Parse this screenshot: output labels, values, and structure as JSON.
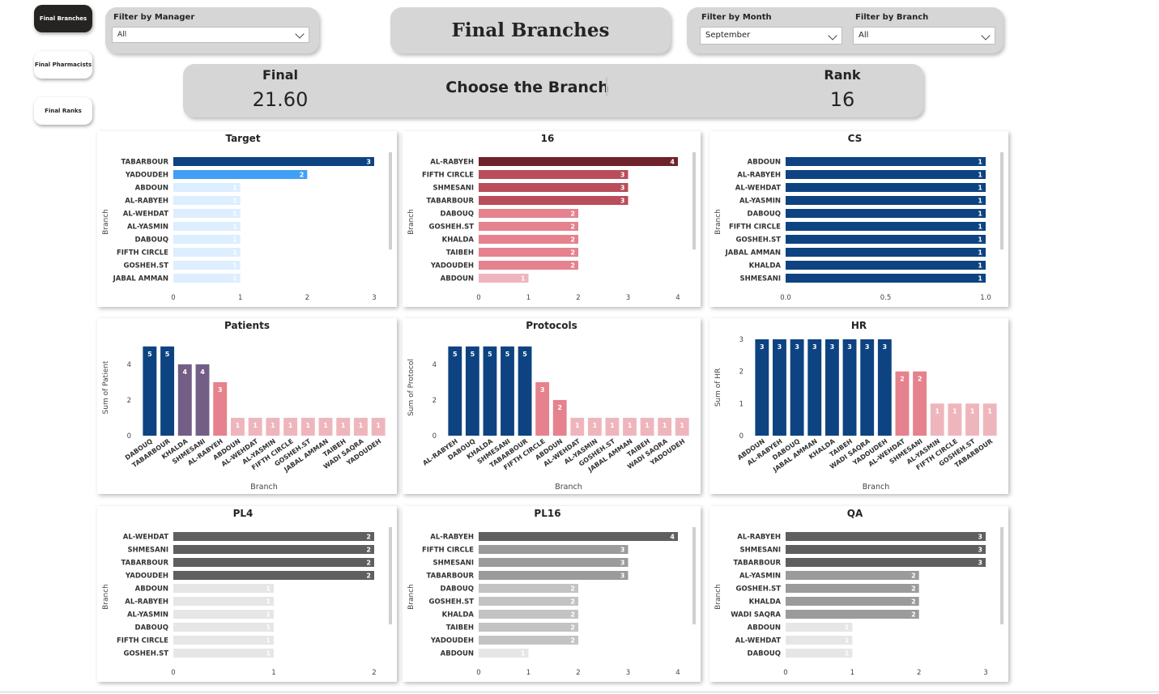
{
  "nav": {
    "branches": "Final Branches",
    "pharmacists": "Final Pharmacists",
    "ranks": "Final Ranks"
  },
  "filters": {
    "manager_label": "Filter by Manager",
    "manager_value": "All",
    "month_label": "Filter by Month",
    "month_value": "September",
    "branch_label": "Filter by Branch",
    "branch_value": "All"
  },
  "page_title": "Final Branches",
  "kpi": {
    "final_label": "Final",
    "final_value": "21.60",
    "choose_label": "Choose the Branch",
    "rank_label": "Rank",
    "rank_value": "16"
  },
  "colors": {
    "navy": "#0d4381",
    "blue": "#41a0f5",
    "paleblue": "#dceeff",
    "maroon": "#6e2229",
    "rose": "#b94d59",
    "pink": "#e5828d",
    "palepink": "#eeb6bc",
    "purple": "#735f85",
    "darkgray": "#5f5f5f",
    "midgray": "#9b9b9b",
    "lightgray": "#c3c3c3",
    "palegray": "#e6e6e6"
  },
  "chart_data": [
    {
      "id": "target",
      "type": "bar",
      "orientation": "horizontal",
      "title": "Target",
      "ylabel": "Branch",
      "categories": [
        "TABARBOUR",
        "YADOUDEH",
        "ABDOUN",
        "AL-RABYEH",
        "AL-WEHDAT",
        "AL-YASMIN",
        "DABOUQ",
        "FIFTH CIRCLE",
        "GOSHEH.ST",
        "JABAL AMMAN"
      ],
      "values": [
        3,
        2,
        1,
        1,
        1,
        1,
        1,
        1,
        1,
        1
      ],
      "ticks": [
        "0",
        "1",
        "2",
        "3"
      ],
      "xlim": [
        0,
        3
      ],
      "bar_colors": [
        "navy",
        "blue",
        "paleblue",
        "paleblue",
        "paleblue",
        "paleblue",
        "paleblue",
        "paleblue",
        "paleblue",
        "paleblue"
      ]
    },
    {
      "id": "c16",
      "type": "bar",
      "orientation": "horizontal",
      "title": "16",
      "ylabel": "Branch",
      "categories": [
        "AL-RABYEH",
        "FIFTH CIRCLE",
        "SHMESANI",
        "TABARBOUR",
        "DABOUQ",
        "GOSHEH.ST",
        "KHALDA",
        "TAIBEH",
        "YADOUDEH",
        "ABDOUN"
      ],
      "values": [
        4,
        3,
        3,
        3,
        2,
        2,
        2,
        2,
        2,
        1
      ],
      "ticks": [
        "0",
        "1",
        "2",
        "3",
        "4"
      ],
      "xlim": [
        0,
        4
      ],
      "bar_colors": [
        "maroon",
        "rose",
        "rose",
        "rose",
        "pink",
        "pink",
        "pink",
        "pink",
        "pink",
        "palepink"
      ]
    },
    {
      "id": "cs",
      "type": "bar",
      "orientation": "horizontal",
      "title": "CS",
      "ylabel": "Branch",
      "categories": [
        "ABDOUN",
        "AL-RABYEH",
        "AL-WEHDAT",
        "AL-YASMIN",
        "DABOUQ",
        "FIFTH CIRCLE",
        "GOSHEH.ST",
        "JABAL AMMAN",
        "KHALDA",
        "SHMESANI"
      ],
      "values": [
        1,
        1,
        1,
        1,
        1,
        1,
        1,
        1,
        1,
        1
      ],
      "ticks": [
        "0.0",
        "0.5",
        "1.0"
      ],
      "xlim": [
        0,
        1
      ],
      "bar_colors": [
        "navy",
        "navy",
        "navy",
        "navy",
        "navy",
        "navy",
        "navy",
        "navy",
        "navy",
        "navy"
      ]
    },
    {
      "id": "patients",
      "type": "bar",
      "orientation": "vertical",
      "title": "Patients",
      "xlabel": "Branch",
      "ylabel": "Sum of Patient",
      "categories": [
        "DABOUQ",
        "TABARBOUR",
        "KHALDA",
        "SHMESANI",
        "AL-RABYEH",
        "ABDOUN",
        "AL-WEHDAT",
        "AL-YASMIN",
        "FIFTH CIRCLE",
        "GOSHEH.ST",
        "JABAL AMMAN",
        "TAIBEH",
        "WADI SAQRA",
        "YADOUDEH"
      ],
      "values": [
        5,
        5,
        4,
        4,
        3,
        1,
        1,
        1,
        1,
        1,
        1,
        1,
        1,
        1
      ],
      "ticks": [
        "0",
        "2",
        "4"
      ],
      "ylim": [
        0,
        5.4
      ],
      "bar_colors": [
        "navy",
        "navy",
        "purple",
        "purple",
        "pink",
        "palepink",
        "palepink",
        "palepink",
        "palepink",
        "palepink",
        "palepink",
        "palepink",
        "palepink",
        "palepink"
      ]
    },
    {
      "id": "protocols",
      "type": "bar",
      "orientation": "vertical",
      "title": "Protocols",
      "xlabel": "Branch",
      "ylabel": "Sum of Protocol",
      "categories": [
        "AL-RABYEH",
        "DABOUQ",
        "KHALDA",
        "SHMESANI",
        "TABARBOUR",
        "FIFTH CIRCLE",
        "ABDOUN",
        "AL-WEHDAT",
        "AL-YASMIN",
        "GOSHEH.ST",
        "JABAL AMMAN",
        "TAIBEH",
        "WADI SAQRA",
        "YADOUDEH"
      ],
      "values": [
        5,
        5,
        5,
        5,
        5,
        3,
        2,
        1,
        1,
        1,
        1,
        1,
        1,
        1
      ],
      "ticks": [
        "0",
        "2",
        "4"
      ],
      "ylim": [
        0,
        5.4
      ],
      "bar_colors": [
        "navy",
        "navy",
        "navy",
        "navy",
        "navy",
        "pink",
        "pink",
        "palepink",
        "palepink",
        "palepink",
        "palepink",
        "palepink",
        "palepink",
        "palepink"
      ]
    },
    {
      "id": "hr",
      "type": "bar",
      "orientation": "vertical",
      "title": "HR",
      "xlabel": "Branch",
      "ylabel": "Sum of HR",
      "categories": [
        "ABDOUN",
        "AL-RABYEH",
        "DABOUQ",
        "JABAL AMMAN",
        "KHALDA",
        "TAIBEH",
        "WADI SAQRA",
        "YADOUDEH",
        "AL-WEHDAT",
        "SHMESANI",
        "AL-YASMIN",
        "FIFTH CIRCLE",
        "GOSHEH.ST",
        "TABARBOUR"
      ],
      "values": [
        3,
        3,
        3,
        3,
        3,
        3,
        3,
        3,
        2,
        2,
        1,
        1,
        1,
        1
      ],
      "ticks": [
        "0",
        "1",
        "2",
        "3"
      ],
      "ylim": [
        0,
        3
      ],
      "bar_colors": [
        "navy",
        "navy",
        "navy",
        "navy",
        "navy",
        "navy",
        "navy",
        "navy",
        "pink",
        "pink",
        "palepink",
        "palepink",
        "palepink",
        "palepink"
      ]
    },
    {
      "id": "pl4",
      "type": "bar",
      "orientation": "horizontal",
      "title": "PL4",
      "ylabel": "Branch",
      "categories": [
        "AL-WEHDAT",
        "SHMESANI",
        "TABARBOUR",
        "YADOUDEH",
        "ABDOUN",
        "AL-RABYEH",
        "AL-YASMIN",
        "DABOUQ",
        "FIFTH CIRCLE",
        "GOSHEH.ST"
      ],
      "values": [
        2,
        2,
        2,
        2,
        1,
        1,
        1,
        1,
        1,
        1
      ],
      "ticks": [
        "0",
        "1",
        "2"
      ],
      "xlim": [
        0,
        2
      ],
      "bar_colors": [
        "darkgray",
        "darkgray",
        "darkgray",
        "darkgray",
        "palegray",
        "palegray",
        "palegray",
        "palegray",
        "palegray",
        "palegray"
      ]
    },
    {
      "id": "pl16",
      "type": "bar",
      "orientation": "horizontal",
      "title": "PL16",
      "ylabel": "Branch",
      "categories": [
        "AL-RABYEH",
        "FIFTH CIRCLE",
        "SHMESANI",
        "TABARBOUR",
        "DABOUQ",
        "GOSHEH.ST",
        "KHALDA",
        "TAIBEH",
        "YADOUDEH",
        "ABDOUN"
      ],
      "values": [
        4,
        3,
        3,
        3,
        2,
        2,
        2,
        2,
        2,
        1
      ],
      "ticks": [
        "0",
        "1",
        "2",
        "3",
        "4"
      ],
      "xlim": [
        0,
        4
      ],
      "bar_colors": [
        "darkgray",
        "midgray",
        "midgray",
        "midgray",
        "lightgray",
        "lightgray",
        "lightgray",
        "lightgray",
        "lightgray",
        "palegray"
      ]
    },
    {
      "id": "qa",
      "type": "bar",
      "orientation": "horizontal",
      "title": "QA",
      "ylabel": "Branch",
      "categories": [
        "AL-RABYEH",
        "SHMESANI",
        "TABARBOUR",
        "AL-YASMIN",
        "GOSHEH.ST",
        "KHALDA",
        "WADI SAQRA",
        "ABDOUN",
        "AL-WEHDAT",
        "DABOUQ"
      ],
      "values": [
        3,
        3,
        3,
        2,
        2,
        2,
        2,
        1,
        1,
        1
      ],
      "ticks": [
        "0",
        "1",
        "2",
        "3"
      ],
      "xlim": [
        0,
        3
      ],
      "bar_colors": [
        "darkgray",
        "darkgray",
        "darkgray",
        "midgray",
        "midgray",
        "midgray",
        "midgray",
        "palegray",
        "palegray",
        "palegray"
      ]
    }
  ]
}
